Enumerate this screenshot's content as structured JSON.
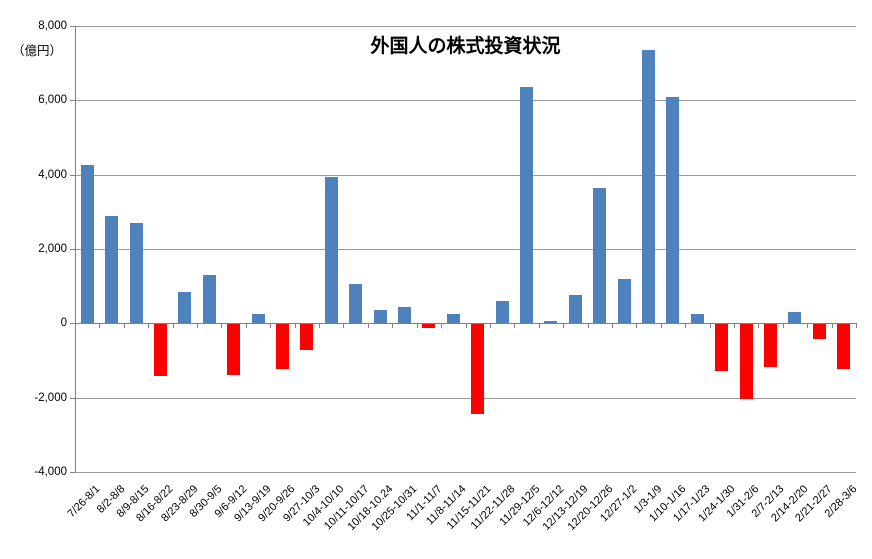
{
  "chart_data": {
    "type": "bar",
    "title": "外国人の株式投資状況",
    "ylabel_unit": "（億円）",
    "categories": [
      "7/26-8/1",
      "8/2-8/8",
      "8/9-8/15",
      "8/16-8/22",
      "8/23-8/29",
      "8/30-9/5",
      "9/6-9/12",
      "9/13-9/19",
      "9/20-9/26",
      "9/27-10/3",
      "10/4-10/10",
      "10/11-10/17",
      "10/18-10.24",
      "10/25-10/31",
      "11/1-11/7",
      "11/8-11/14",
      "11/15-11/21",
      "11/22-11/28",
      "11/29-12/5",
      "12/6-12/12",
      "12/13-12/19",
      "12/20-12/26",
      "12/27-1/2",
      "1/3-1/9",
      "1/10-1/16",
      "1/17-1/23",
      "1/24-1/30",
      "1/31-2/6",
      "2/7-2/13",
      "2/14-2/20",
      "2/21-2/27",
      "2/28-3/6"
    ],
    "values": [
      4250,
      2900,
      2700,
      -1400,
      850,
      1300,
      -1350,
      250,
      -1200,
      -700,
      3950,
      1050,
      350,
      450,
      -100,
      250,
      -2400,
      600,
      6350,
      50,
      750,
      3650,
      1200,
      7350,
      6100,
      250,
      -1250,
      -2000,
      -1150,
      300,
      -400,
      -1200
    ],
    "ylim": [
      -4000,
      8000
    ],
    "ytick_step": 2000,
    "ytick_labels": [
      "8,000",
      "6,000",
      "4,000",
      "2,000",
      "0",
      "-2,000",
      "-4,000"
    ],
    "grid": true,
    "legend": false,
    "colors": {
      "positive_bar": "#4F81BD",
      "negative_bar": "#FF0000",
      "gridline": "#999999",
      "axis": "#808080",
      "text": "#000000",
      "background": "#FFFFFF"
    }
  }
}
